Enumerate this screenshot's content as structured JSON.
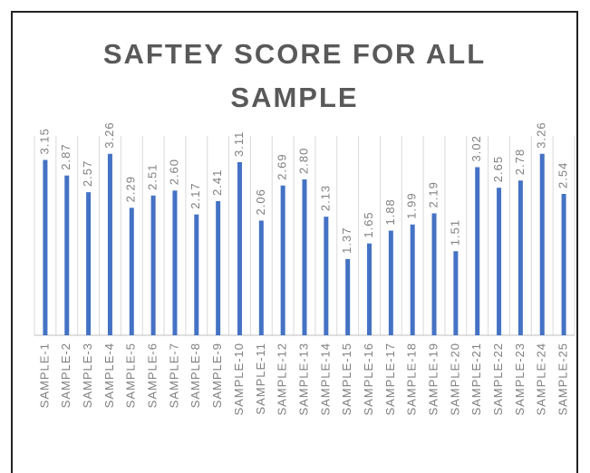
{
  "chart_data": {
    "type": "bar",
    "title": "SAFTEY SCORE FOR ALL SAMPLE",
    "categories": [
      "SAMPLE-1",
      "SAMPLE-2",
      "SAMPLE-3",
      "SAMPLE-4",
      "SAMPLE-5",
      "SAMPLE-6",
      "SAMPLE-7",
      "SAMPLE-8",
      "SAMPLE-9",
      "SAMPLE-10",
      "SAMPLE-11",
      "SAMPLE-12",
      "SAMPLE-13",
      "SAMPLE-14",
      "SAMPLE-15",
      "SAMPLE-16",
      "SAMPLE-17",
      "SAMPLE-18",
      "SAMPLE-19",
      "SAMPLE-20",
      "SAMPLE-21",
      "SAMPLE-22",
      "SAMPLE-23",
      "SAMPLE-24",
      "SAMPLE-25"
    ],
    "values": [
      3.15,
      2.87,
      2.57,
      3.26,
      2.29,
      2.51,
      2.6,
      2.17,
      2.41,
      3.11,
      2.06,
      2.69,
      2.8,
      2.13,
      1.37,
      1.65,
      1.88,
      1.99,
      2.19,
      1.51,
      3.02,
      2.65,
      2.78,
      3.26,
      2.54
    ],
    "value_labels": [
      "3.15",
      "2.87",
      "2.57",
      "3.26",
      "2.29",
      "2.51",
      "2.60",
      "2.17",
      "2.41",
      "3.11",
      "2.06",
      "2.69",
      "2.80",
      "2.13",
      "1.37",
      "1.65",
      "1.88",
      "1.99",
      "2.19",
      "1.51",
      "3.02",
      "2.65",
      "2.78",
      "3.26",
      "2.54"
    ],
    "color": "#4472c4",
    "ylim": [
      0,
      3.5
    ]
  }
}
